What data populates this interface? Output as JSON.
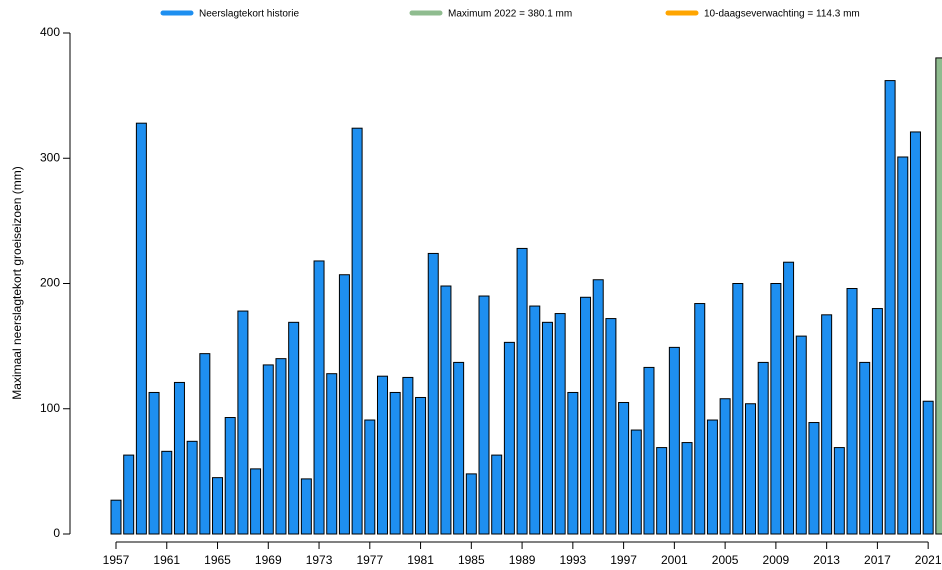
{
  "chart_data": {
    "type": "bar",
    "y_label": "Maximaal neerslagtekort groeiseizoen (mm)",
    "legend": [
      {
        "name": "Neerslagtekort historie",
        "color": "#1e8ff0"
      },
      {
        "name": "Maximum 2022 = 380.1 mm",
        "color": "#8fbc8f"
      },
      {
        "name": "10-daagseverwachting = 114.3 mm",
        "color": "#ffa500"
      }
    ],
    "categories": [
      "1957",
      null,
      null,
      null,
      "1961",
      null,
      null,
      null,
      "1965",
      null,
      null,
      null,
      "1969",
      null,
      null,
      null,
      "1973",
      null,
      null,
      null,
      "1977",
      null,
      null,
      null,
      "1981",
      null,
      null,
      null,
      "1985",
      null,
      null,
      null,
      "1989",
      null,
      null,
      null,
      "1993",
      null,
      null,
      null,
      "1997",
      null,
      null,
      null,
      "2001",
      null,
      null,
      null,
      "2005",
      null,
      null,
      null,
      "2009",
      null,
      null,
      null,
      "2013",
      null,
      null,
      null,
      "2017",
      null,
      null,
      null,
      "2021",
      null
    ],
    "values": [
      27,
      63,
      328,
      113,
      66,
      121,
      74,
      144,
      45,
      93,
      178,
      52,
      135,
      140,
      169,
      44,
      218,
      128,
      207,
      324,
      91,
      126,
      113,
      125,
      109,
      224,
      198,
      137,
      48,
      190,
      63,
      153,
      228,
      182,
      169,
      176,
      113,
      189,
      203,
      172,
      105,
      83,
      133,
      69,
      149,
      73,
      184,
      91,
      108,
      200,
      104,
      137,
      200,
      217,
      158,
      89,
      175,
      69,
      196,
      137,
      180,
      362,
      301,
      321,
      106,
      380.1
    ],
    "colors": [
      "#1e8ff0",
      "#1e8ff0",
      "#1e8ff0",
      "#1e8ff0",
      "#1e8ff0",
      "#1e8ff0",
      "#1e8ff0",
      "#1e8ff0",
      "#1e8ff0",
      "#1e8ff0",
      "#1e8ff0",
      "#1e8ff0",
      "#1e8ff0",
      "#1e8ff0",
      "#1e8ff0",
      "#1e8ff0",
      "#1e8ff0",
      "#1e8ff0",
      "#1e8ff0",
      "#1e8ff0",
      "#1e8ff0",
      "#1e8ff0",
      "#1e8ff0",
      "#1e8ff0",
      "#1e8ff0",
      "#1e8ff0",
      "#1e8ff0",
      "#1e8ff0",
      "#1e8ff0",
      "#1e8ff0",
      "#1e8ff0",
      "#1e8ff0",
      "#1e8ff0",
      "#1e8ff0",
      "#1e8ff0",
      "#1e8ff0",
      "#1e8ff0",
      "#1e8ff0",
      "#1e8ff0",
      "#1e8ff0",
      "#1e8ff0",
      "#1e8ff0",
      "#1e8ff0",
      "#1e8ff0",
      "#1e8ff0",
      "#1e8ff0",
      "#1e8ff0",
      "#1e8ff0",
      "#1e8ff0",
      "#1e8ff0",
      "#1e8ff0",
      "#1e8ff0",
      "#1e8ff0",
      "#1e8ff0",
      "#1e8ff0",
      "#1e8ff0",
      "#1e8ff0",
      "#1e8ff0",
      "#1e8ff0",
      "#1e8ff0",
      "#1e8ff0",
      "#1e8ff0",
      "#1e8ff0",
      "#1e8ff0",
      "#1e8ff0",
      "#8fbc8f"
    ],
    "ylim": [
      0,
      400
    ],
    "yticks": [
      0,
      100,
      200,
      300,
      400
    ]
  }
}
